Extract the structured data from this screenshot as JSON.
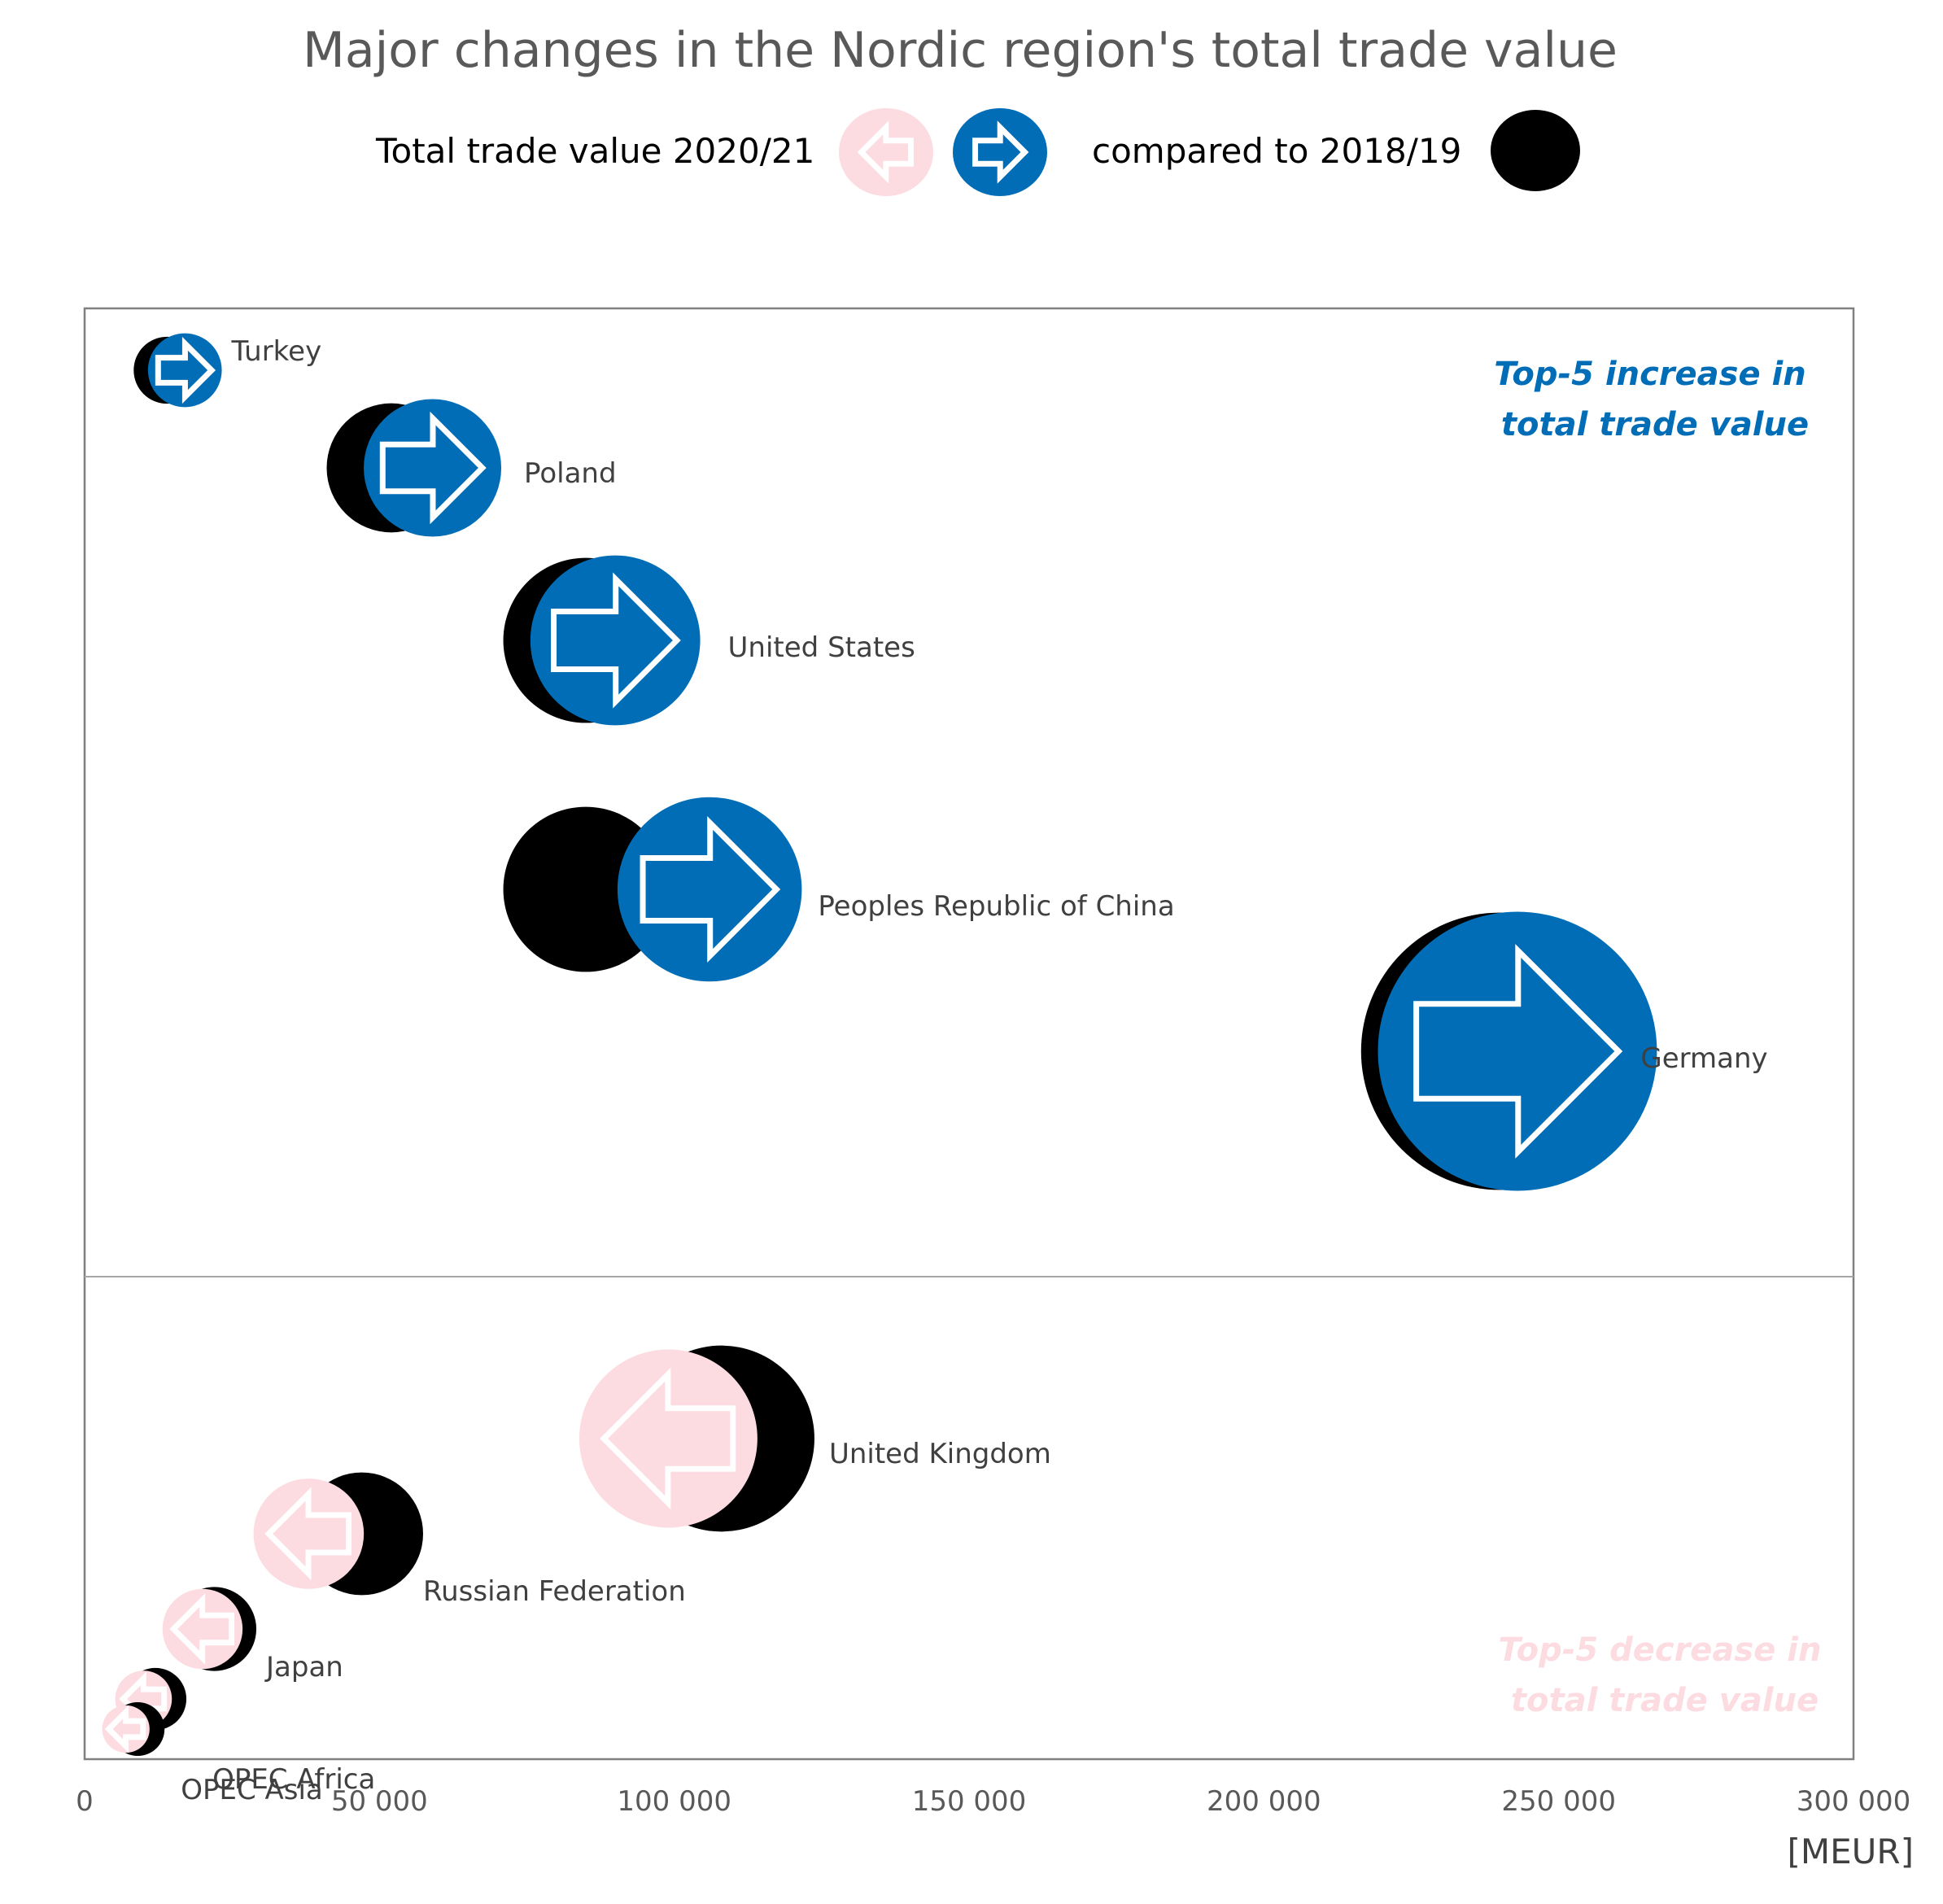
{
  "chart_data": {
    "type": "bubble",
    "title": "Major changes in the Nordic region's total trade value",
    "legend": {
      "current_label": "Total trade value 2020/21",
      "previous_label": "compared to 2018/19",
      "placement": "top"
    },
    "x_unit": "[MEUR]",
    "xlim": [
      0,
      300000
    ],
    "x_ticks": [
      0,
      50000,
      100000,
      150000,
      200000,
      250000,
      300000
    ],
    "x_tick_labels": [
      "0",
      "50 000",
      "100 000",
      "150 000",
      "200 000",
      "250 000",
      "300 000"
    ],
    "grid": false,
    "panels": {
      "increase_note": [
        "Top-5 increase in",
        "total trade value"
      ],
      "decrease_note": [
        "Top-5 decrease in",
        "total trade value"
      ]
    },
    "colors": {
      "increase": "#006db6",
      "decrease": "#fcdbe1",
      "previous": "#000000",
      "title": "#595959",
      "increase_note": "#006db6",
      "decrease_note": "#fcdbe1"
    },
    "series": [
      {
        "name": "Turkey",
        "group": "increase",
        "value_2020_21": 17000,
        "value_2018_19": 14000
      },
      {
        "name": "Poland",
        "group": "increase",
        "value_2020_21": 59000,
        "value_2018_19": 52000
      },
      {
        "name": "United States",
        "group": "increase",
        "value_2020_21": 90000,
        "value_2018_19": 85000
      },
      {
        "name": "Peoples Republic of China",
        "group": "increase",
        "value_2020_21": 106000,
        "value_2018_19": 85000
      },
      {
        "name": "Germany",
        "group": "increase",
        "value_2020_21": 243000,
        "value_2018_19": 240000
      },
      {
        "name": "United Kingdom",
        "group": "decrease",
        "value_2020_21": 99000,
        "value_2018_19": 108000
      },
      {
        "name": "Russian Federation",
        "group": "decrease",
        "value_2020_21": 38000,
        "value_2018_19": 47000
      },
      {
        "name": "Japan",
        "group": "decrease",
        "value_2020_21": 20000,
        "value_2018_19": 22000
      },
      {
        "name": "OPEC Africa",
        "group": "decrease",
        "value_2020_21": 10000,
        "value_2018_19": 12000
      },
      {
        "name": "OPEC Asia",
        "group": "decrease",
        "value_2020_21": 7000,
        "value_2018_19": 9000
      }
    ]
  }
}
